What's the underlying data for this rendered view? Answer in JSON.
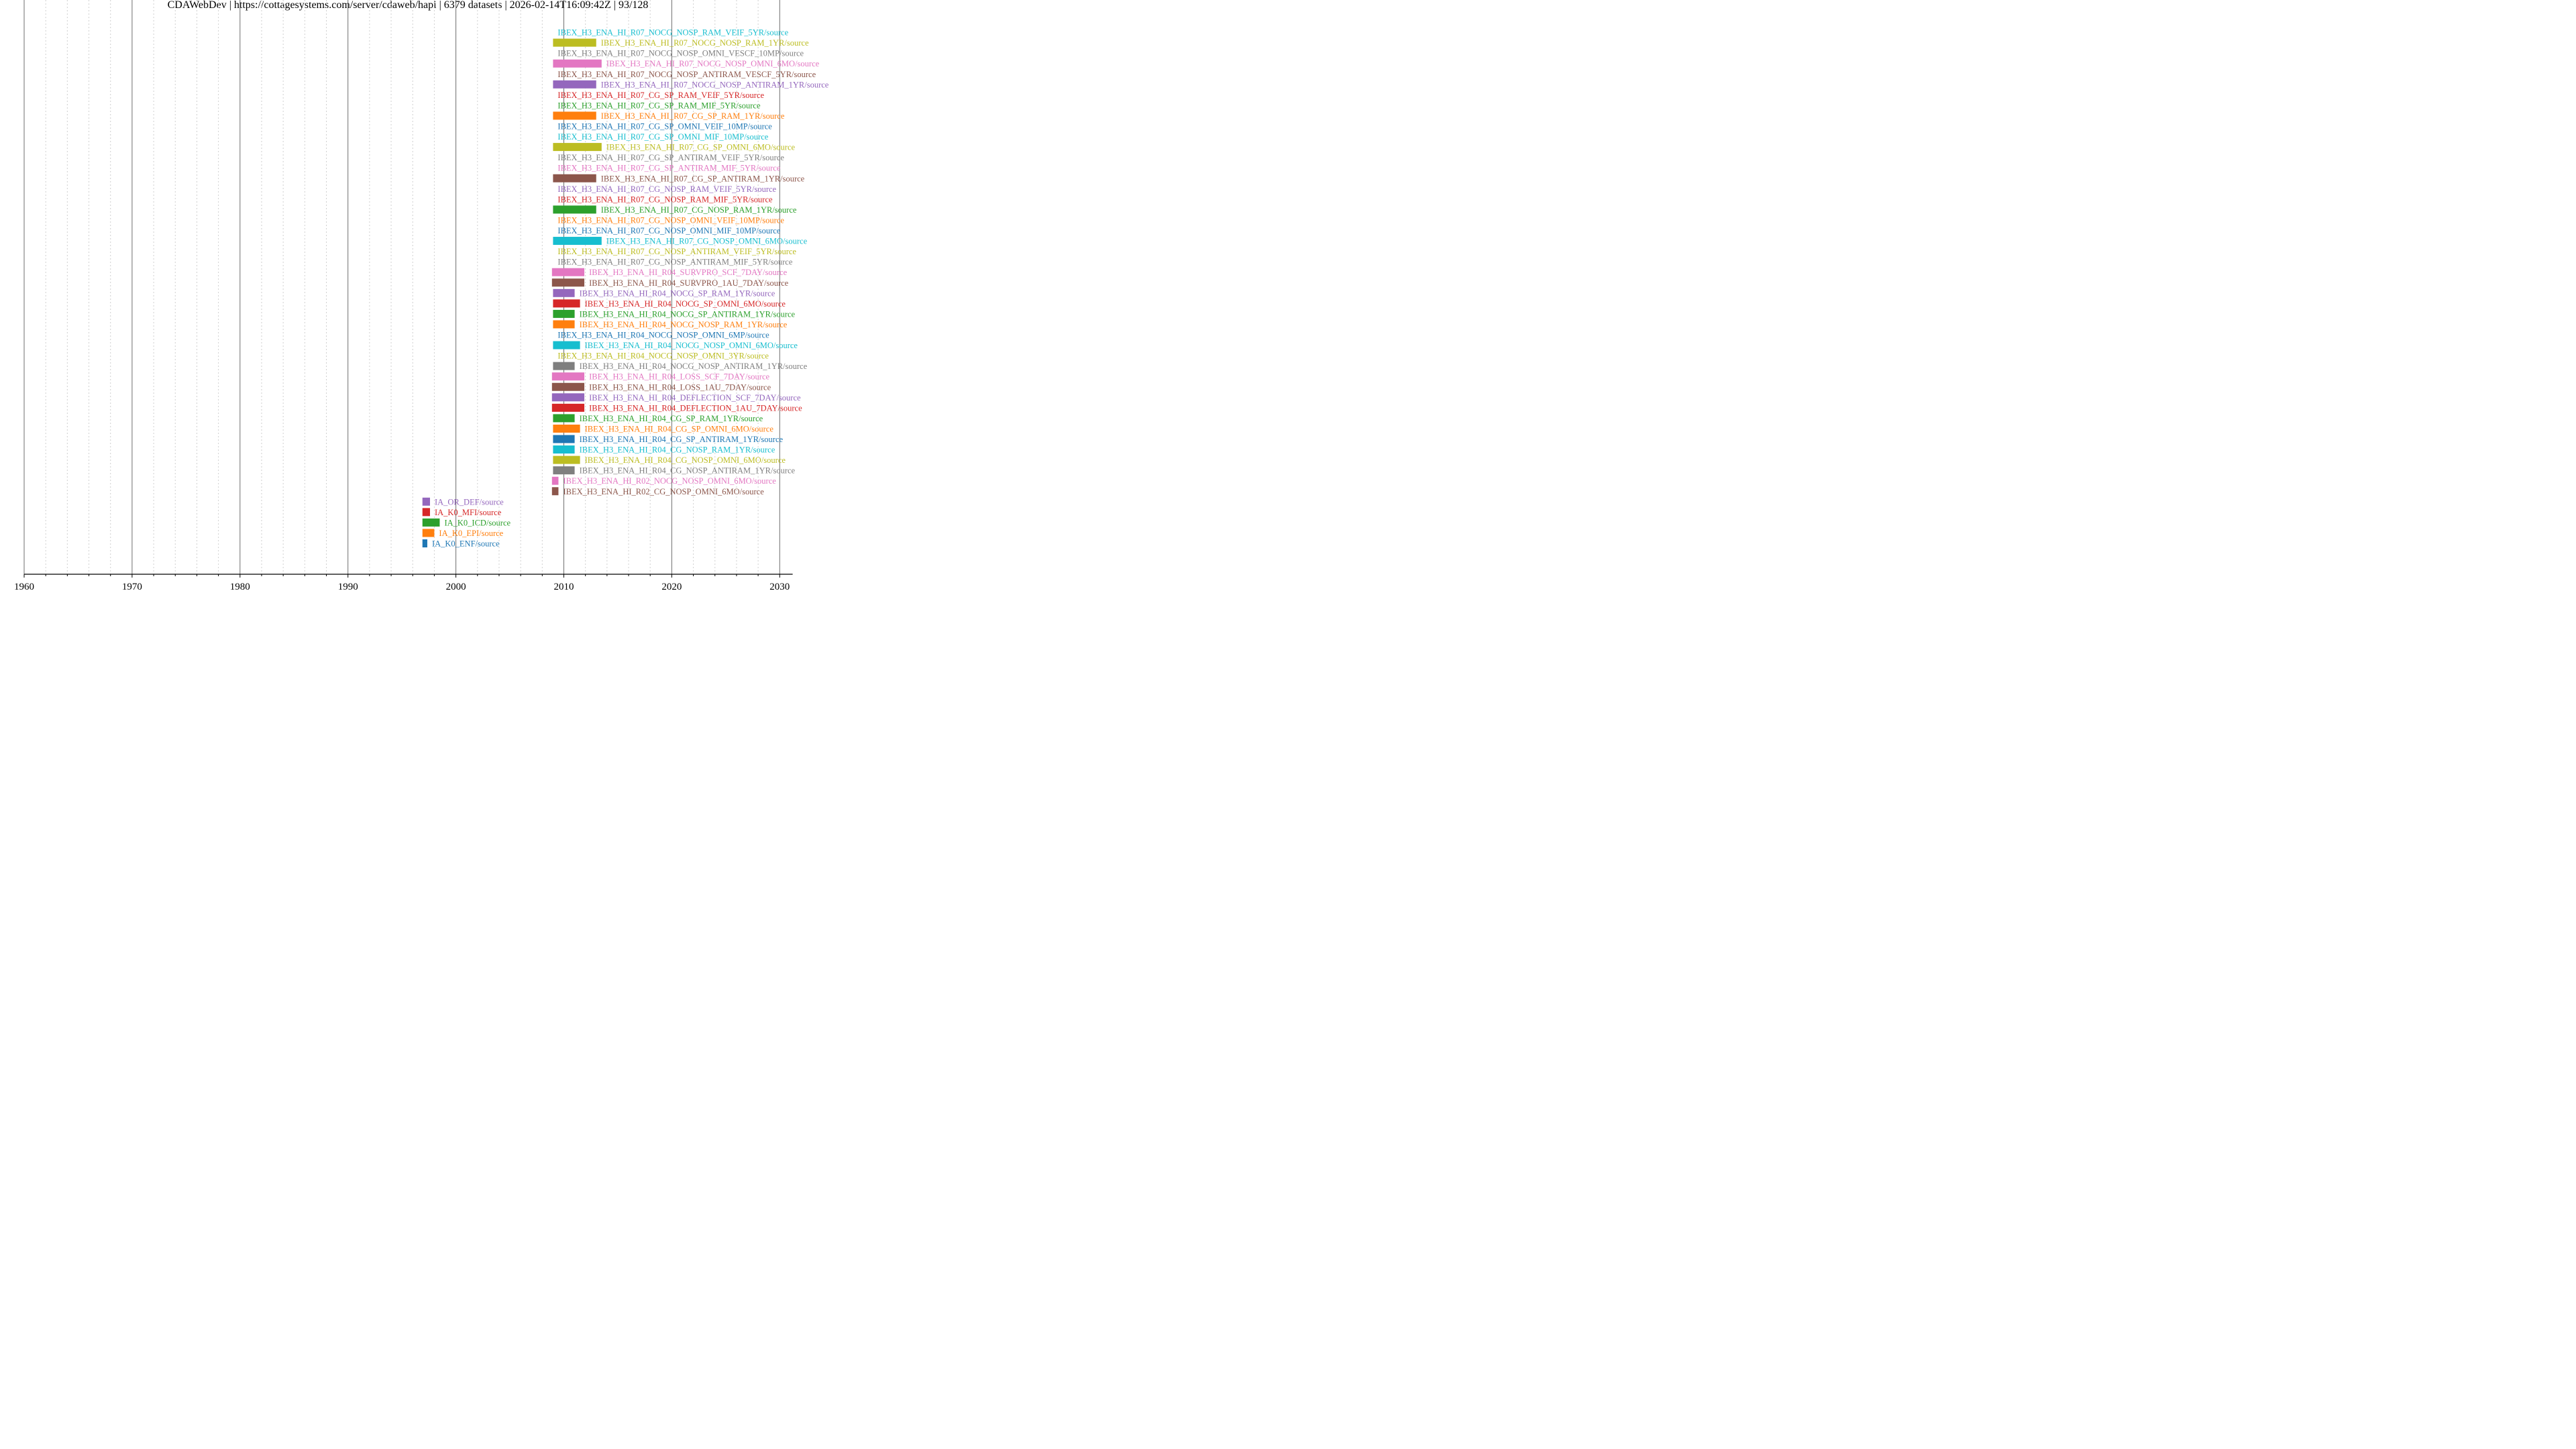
{
  "title": "CDAWebDev | https://cottagesystems.com/server/cdaweb/hapi | 6379 datasets | 2026-02-14T16:09:42Z | 93/128",
  "colors": [
    "#1f77b4",
    "#ff7f0e",
    "#2ca02c",
    "#d62728",
    "#9467bd",
    "#8c564b",
    "#e377c2",
    "#7f7f7f",
    "#bcbd22",
    "#17becf"
  ],
  "chart_data": {
    "type": "timeline",
    "title": "CDAWebDev | https://cottagesystems.com/server/cdaweb/hapi | 6379 datasets | 2026-02-14T16:09:42Z | 93/128",
    "xlabel": "",
    "ylabel": "",
    "xlim": [
      1960,
      2031.2
    ],
    "x_major_ticks": [
      1960,
      1970,
      1980,
      1990,
      2000,
      2010,
      2020,
      2030
    ],
    "x_minor_step": 2,
    "grid": true,
    "datasets": [
      {
        "label": "IA_K0_ENF/source",
        "start": 1996.9,
        "end": 1997.35
      },
      {
        "label": "IA_K0_EPI/source",
        "start": 1996.9,
        "end": 1998.0
      },
      {
        "label": "IA_K0_ICD/source",
        "start": 1996.9,
        "end": 1998.5
      },
      {
        "label": "IA_K0_MFI/source",
        "start": 1996.9,
        "end": 1997.6
      },
      {
        "label": "IA_OR_DEF/source",
        "start": 1996.9,
        "end": 1997.6
      },
      {
        "label": "IBEX_H3_ENA_HI_R02_CG_NOSP_OMNI_6MO/source",
        "start": 2008.9,
        "end": 2009.5
      },
      {
        "label": "IBEX_H3_ENA_HI_R02_NOCG_NOSP_OMNI_6MO/source",
        "start": 2008.9,
        "end": 2009.5
      },
      {
        "label": "IBEX_H3_ENA_HI_R04_CG_NOSP_ANTIRAM_1YR/source",
        "start": 2009.0,
        "end": 2011.0
      },
      {
        "label": "IBEX_H3_ENA_HI_R04_CG_NOSP_OMNI_6MO/source",
        "start": 2009.0,
        "end": 2011.5
      },
      {
        "label": "IBEX_H3_ENA_HI_R04_CG_NOSP_RAM_1YR/source",
        "start": 2009.0,
        "end": 2011.0
      },
      {
        "label": "IBEX_H3_ENA_HI_R04_CG_SP_ANTIRAM_1YR/source",
        "start": 2009.0,
        "end": 2011.0
      },
      {
        "label": "IBEX_H3_ENA_HI_R04_CG_SP_OMNI_6MO/source",
        "start": 2009.0,
        "end": 2011.5
      },
      {
        "label": "IBEX_H3_ENA_HI_R04_CG_SP_RAM_1YR/source",
        "start": 2009.0,
        "end": 2011.0
      },
      {
        "label": "IBEX_H3_ENA_HI_R04_DEFLECTION_1AU_7DAY/source",
        "start": 2008.9,
        "end": 2011.9
      },
      {
        "label": "IBEX_H3_ENA_HI_R04_DEFLECTION_SCF_7DAY/source",
        "start": 2008.9,
        "end": 2011.9
      },
      {
        "label": "IBEX_H3_ENA_HI_R04_LOSS_1AU_7DAY/source",
        "start": 2008.9,
        "end": 2011.9
      },
      {
        "label": "IBEX_H3_ENA_HI_R04_LOSS_SCF_7DAY/source",
        "start": 2008.9,
        "end": 2011.9
      },
      {
        "label": "IBEX_H3_ENA_HI_R04_NOCG_NOSP_ANTIRAM_1YR/source",
        "start": 2009.0,
        "end": 2011.0
      },
      {
        "label": "IBEX_H3_ENA_HI_R04_NOCG_NOSP_OMNI_3YR/source",
        "start": 2009.0,
        "end": 2009.0
      },
      {
        "label": "IBEX_H3_ENA_HI_R04_NOCG_NOSP_OMNI_6MO/source",
        "start": 2009.0,
        "end": 2011.5
      },
      {
        "label": "IBEX_H3_ENA_HI_R04_NOCG_NOSP_OMNI_6MP/source",
        "start": 2009.0,
        "end": 2009.0
      },
      {
        "label": "IBEX_H3_ENA_HI_R04_NOCG_NOSP_RAM_1YR/source",
        "start": 2009.0,
        "end": 2011.0
      },
      {
        "label": "IBEX_H3_ENA_HI_R04_NOCG_SP_ANTIRAM_1YR/source",
        "start": 2009.0,
        "end": 2011.0
      },
      {
        "label": "IBEX_H3_ENA_HI_R04_NOCG_SP_OMNI_6MO/source",
        "start": 2009.0,
        "end": 2011.5
      },
      {
        "label": "IBEX_H3_ENA_HI_R04_NOCG_SP_RAM_1YR/source",
        "start": 2009.0,
        "end": 2011.0
      },
      {
        "label": "IBEX_H3_ENA_HI_R04_SURVPRO_1AU_7DAY/source",
        "start": 2008.9,
        "end": 2011.9
      },
      {
        "label": "IBEX_H3_ENA_HI_R04_SURVPRO_SCF_7DAY/source",
        "start": 2008.9,
        "end": 2011.9
      },
      {
        "label": "IBEX_H3_ENA_HI_R07_CG_NOSP_ANTIRAM_MIF_5YR/source",
        "start": 2009.0,
        "end": 2009.0
      },
      {
        "label": "IBEX_H3_ENA_HI_R07_CG_NOSP_ANTIRAM_VEIF_5YR/source",
        "start": 2009.0,
        "end": 2009.0
      },
      {
        "label": "IBEX_H3_ENA_HI_R07_CG_NOSP_OMNI_6MO/source",
        "start": 2009.0,
        "end": 2013.5
      },
      {
        "label": "IBEX_H3_ENA_HI_R07_CG_NOSP_OMNI_MIF_10MP/source",
        "start": 2009.0,
        "end": 2009.0
      },
      {
        "label": "IBEX_H3_ENA_HI_R07_CG_NOSP_OMNI_VEIF_10MP/source",
        "start": 2009.0,
        "end": 2009.0
      },
      {
        "label": "IBEX_H3_ENA_HI_R07_CG_NOSP_RAM_1YR/source",
        "start": 2009.0,
        "end": 2013.0
      },
      {
        "label": "IBEX_H3_ENA_HI_R07_CG_NOSP_RAM_MIF_5YR/source",
        "start": 2009.0,
        "end": 2009.0
      },
      {
        "label": "IBEX_H3_ENA_HI_R07_CG_NOSP_RAM_VEIF_5YR/source",
        "start": 2009.0,
        "end": 2009.0
      },
      {
        "label": "IBEX_H3_ENA_HI_R07_CG_SP_ANTIRAM_1YR/source",
        "start": 2009.0,
        "end": 2013.0
      },
      {
        "label": "IBEX_H3_ENA_HI_R07_CG_SP_ANTIRAM_MIF_5YR/source",
        "start": 2009.0,
        "end": 2009.0
      },
      {
        "label": "IBEX_H3_ENA_HI_R07_CG_SP_ANTIRAM_VEIF_5YR/source",
        "start": 2009.0,
        "end": 2009.0
      },
      {
        "label": "IBEX_H3_ENA_HI_R07_CG_SP_OMNI_6MO/source",
        "start": 2009.0,
        "end": 2013.5
      },
      {
        "label": "IBEX_H3_ENA_HI_R07_CG_SP_OMNI_MIF_10MP/source",
        "start": 2009.0,
        "end": 2009.0
      },
      {
        "label": "IBEX_H3_ENA_HI_R07_CG_SP_OMNI_VEIF_10MP/source",
        "start": 2009.0,
        "end": 2009.0
      },
      {
        "label": "IBEX_H3_ENA_HI_R07_CG_SP_RAM_1YR/source",
        "start": 2009.0,
        "end": 2013.0
      },
      {
        "label": "IBEX_H3_ENA_HI_R07_CG_SP_RAM_MIF_5YR/source",
        "start": 2009.0,
        "end": 2009.0
      },
      {
        "label": "IBEX_H3_ENA_HI_R07_CG_SP_RAM_VEIF_5YR/source",
        "start": 2009.0,
        "end": 2009.0
      },
      {
        "label": "IBEX_H3_ENA_HI_R07_NOCG_NOSP_ANTIRAM_1YR/source",
        "start": 2009.0,
        "end": 2013.0
      },
      {
        "label": "IBEX_H3_ENA_HI_R07_NOCG_NOSP_ANTIRAM_VESCF_5YR/source",
        "start": 2009.0,
        "end": 2009.0
      },
      {
        "label": "IBEX_H3_ENA_HI_R07_NOCG_NOSP_OMNI_6MO/source",
        "start": 2009.0,
        "end": 2013.5
      },
      {
        "label": "IBEX_H3_ENA_HI_R07_NOCG_NOSP_OMNI_VESCF_10MP/source",
        "start": 2009.0,
        "end": 2009.0
      },
      {
        "label": "IBEX_H3_ENA_HI_R07_NOCG_NOSP_RAM_1YR/source",
        "start": 2009.0,
        "end": 2013.0
      },
      {
        "label": "IBEX_H3_ENA_HI_R07_NOCG_NOSP_RAM_VEIF_5YR/source",
        "start": 2009.0,
        "end": 2009.0
      }
    ]
  }
}
